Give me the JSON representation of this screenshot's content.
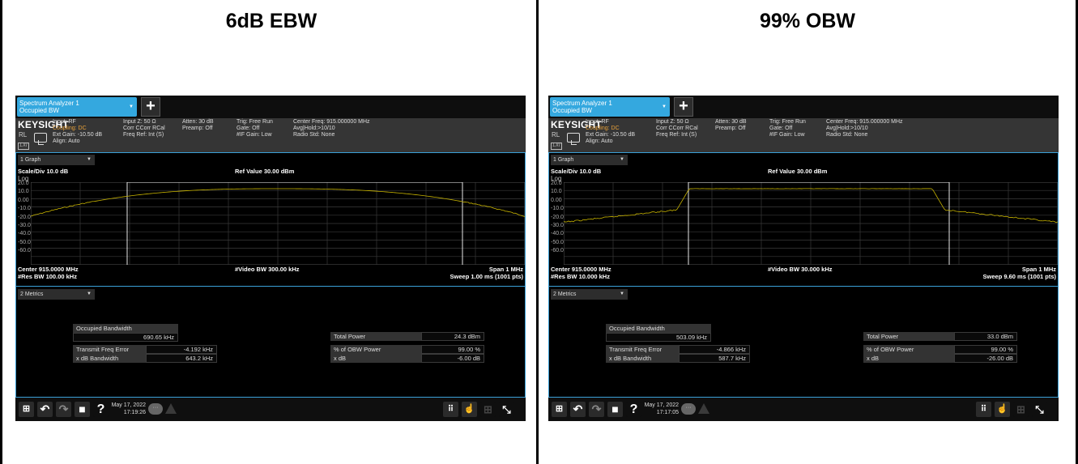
{
  "panels": [
    {
      "title": "6dB EBW",
      "analyzer": {
        "tab": {
          "line1": "Spectrum Analyzer 1",
          "line2": "Occupied BW"
        },
        "brand": "KEYSIGHT",
        "rl": "RL",
        "lxi": "LXI",
        "info": {
          "c1": [
            "Input: RF",
            "Coupling: DC",
            "Ext Gain: -10.50 dB",
            "Align: Auto"
          ],
          "c2": [
            "Input Z: 50 Ω",
            "Corr CCorr RCal",
            "Freq Ref: Int (S)"
          ],
          "c3": [
            "Atten: 30 dB",
            "Preamp: Off"
          ],
          "c4": [
            "Trig: Free Run",
            "Gate: Off",
            "#IF Gain: Low"
          ],
          "c5": [
            "Center Freq: 915.000000 MHz",
            "Avg|Hold:>10/10",
            "Radio Std: None"
          ]
        },
        "graph_select": "1 Graph",
        "scale": "Scale/Div 10.0 dB",
        "ref": "Ref Value 30.00 dBm",
        "log": "Log",
        "yticks": [
          "20.0",
          "10.0",
          "0.00",
          "-10.0",
          "-20.0",
          "-30.0",
          "-40.0",
          "-50.0",
          "-60.0"
        ],
        "center": "Center 915.0000 MHz",
        "res_bw": "#Res BW 100.00 kHz",
        "video_bw": "#Video BW 300.00 kHz",
        "span": "Span 1 MHz",
        "sweep": "Sweep 1.00 ms (1001 pts)",
        "metrics_select": "2 Metrics",
        "occ_bw_label": "Occupied Bandwidth",
        "occ_bw_value": "690.65 kHz",
        "tfe_label": "Transmit Freq Error",
        "tfe_value": "-4.192 kHz",
        "xdb_bw_label": "x dB Bandwidth",
        "xdb_bw_value": "643.2 kHz",
        "tp_label": "Total Power",
        "tp_value": "24.3 dBm",
        "obw_label": "% of OBW Power",
        "obw_value": "99.00 %",
        "xdb_label": "x dB",
        "xdb_value": "-6.00 dB",
        "date": "May 17, 2022",
        "time": "17:19:26"
      }
    },
    {
      "title": "99% OBW",
      "analyzer": {
        "tab": {
          "line1": "Spectrum Analyzer 1",
          "line2": "Occupied BW"
        },
        "brand": "KEYSIGHT",
        "rl": "RL",
        "lxi": "LXI",
        "info": {
          "c1": [
            "Input: RF",
            "Coupling: DC",
            "Ext Gain: -10.50 dB",
            "Align: Auto"
          ],
          "c2": [
            "Input Z: 50 Ω",
            "Corr CCorr RCal",
            "Freq Ref: Int (S)"
          ],
          "c3": [
            "Atten: 30 dB",
            "Preamp: Off"
          ],
          "c4": [
            "Trig: Free Run",
            "Gate: Off",
            "#IF Gain: Low"
          ],
          "c5": [
            "Center Freq: 915.000000 MHz",
            "Avg|Hold:>10/10",
            "Radio Std: None"
          ]
        },
        "graph_select": "1 Graph",
        "scale": "Scale/Div 10.0 dB",
        "ref": "Ref Value 30.00 dBm",
        "log": "Log",
        "yticks": [
          "20.0",
          "10.0",
          "0.00",
          "-10.0",
          "-20.0",
          "-30.0",
          "-40.0",
          "-50.0",
          "-60.0"
        ],
        "center": "Center 915.0000 MHz",
        "res_bw": "#Res BW 10.000 kHz",
        "video_bw": "#Video BW 30.000 kHz",
        "span": "Span 1 MHz",
        "sweep": "Sweep 9.60 ms (1001 pts)",
        "metrics_select": "2 Metrics",
        "occ_bw_label": "Occupied Bandwidth",
        "occ_bw_value": "503.09 kHz",
        "tfe_label": "Transmit Freq Error",
        "tfe_value": "-4.866 kHz",
        "xdb_bw_label": "x dB Bandwidth",
        "xdb_bw_value": "587.7 kHz",
        "tp_label": "Total Power",
        "tp_value": "33.0 dBm",
        "obw_label": "% of OBW Power",
        "obw_value": "99.00 %",
        "xdb_label": "x dB",
        "xdb_value": "-26.00 dB",
        "date": "May 17, 2022",
        "time": "17:17:05"
      }
    }
  ],
  "trace_color": "#c8b400",
  "accent": "#34a8df"
}
